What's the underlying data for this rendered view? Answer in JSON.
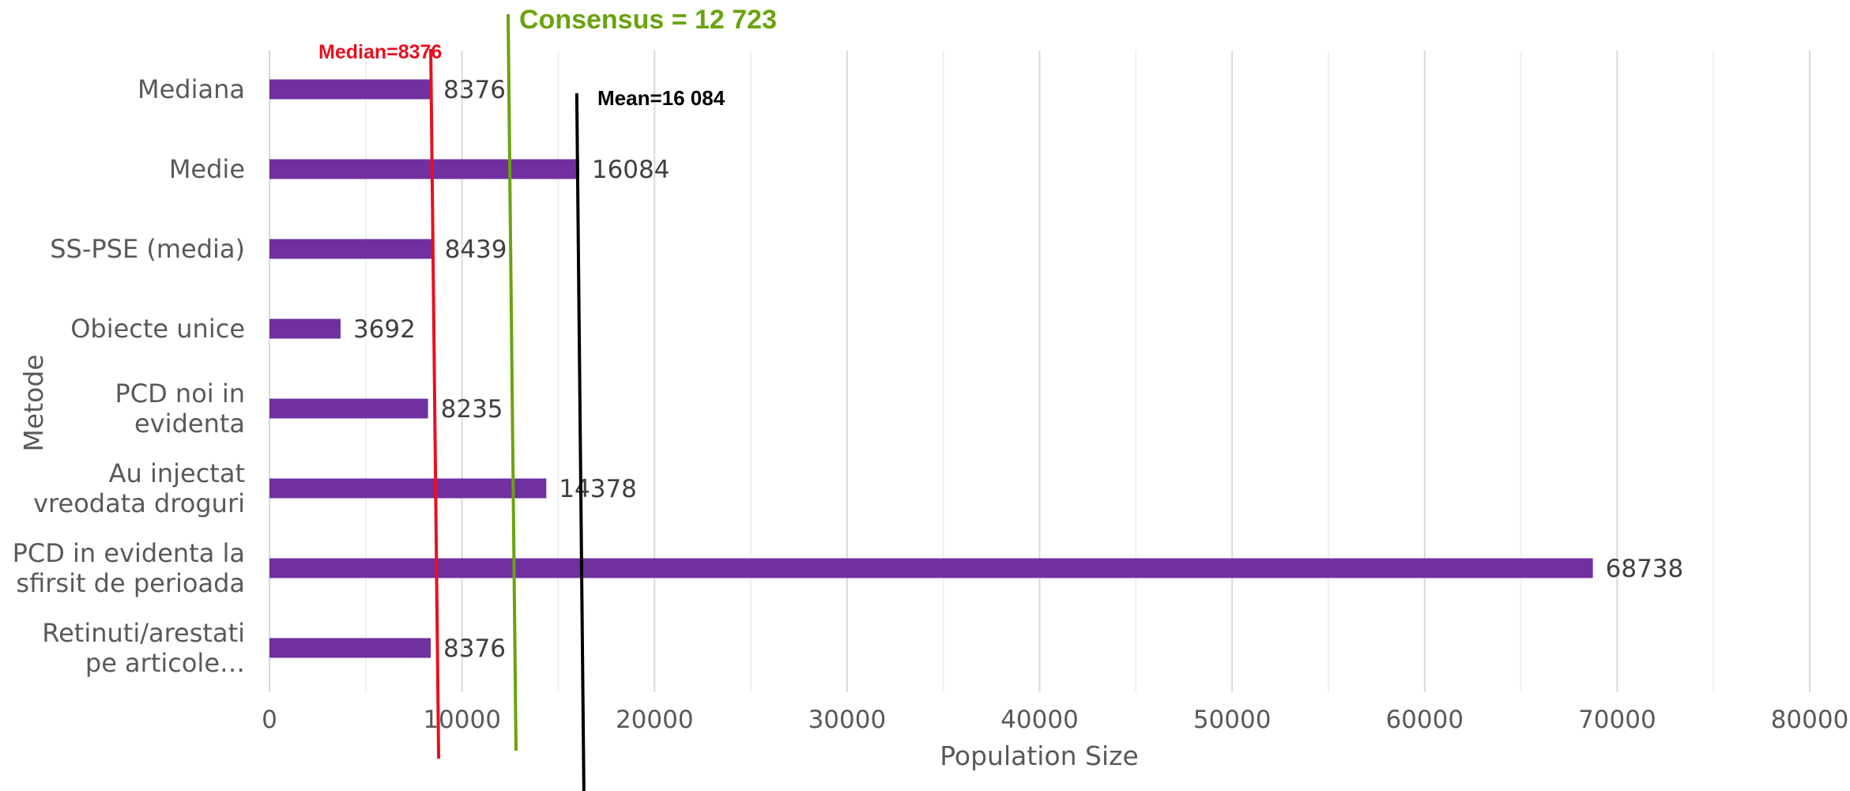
{
  "chart_data": {
    "type": "bar",
    "orientation": "horizontal",
    "categories": [
      [
        "Mediana"
      ],
      [
        "Medie"
      ],
      [
        "SS-PSE (media)"
      ],
      [
        "Obiecte unice"
      ],
      [
        "PCD noi in",
        "evidenta"
      ],
      [
        "Au injectat",
        "vreodata droguri"
      ],
      [
        "PCD in evidenta la",
        "sfirsit de perioada"
      ],
      [
        "Retinuti/arestati",
        "pe articole…"
      ]
    ],
    "values": [
      8376,
      16084,
      8439,
      3692,
      8235,
      14378,
      68738,
      8376
    ],
    "data_labels": [
      "8376",
      "16084",
      "8439",
      "3692",
      "8235",
      "14378",
      "68738",
      "8376"
    ],
    "xlabel": "Population Size",
    "ylabel": "Metode",
    "xlim": [
      0,
      80000
    ],
    "x_ticks": [
      0,
      10000,
      20000,
      30000,
      40000,
      50000,
      60000,
      70000,
      80000
    ],
    "x_tick_labels": [
      "0",
      "10000",
      "20000",
      "30000",
      "40000",
      "50000",
      "60000",
      "70000",
      "80000"
    ],
    "grid": "vertical",
    "bar_color": "#7030a0",
    "reference_lines": [
      {
        "name": "Median",
        "label": "Median=8376",
        "value": 8376,
        "color": "#e8101e"
      },
      {
        "name": "Consensus",
        "label": "Consensus = 12 723",
        "value": 12723,
        "color": "#6aa30e"
      },
      {
        "name": "Mean",
        "label": "Mean=16 084",
        "value": 16084,
        "color": "#000000"
      }
    ]
  }
}
